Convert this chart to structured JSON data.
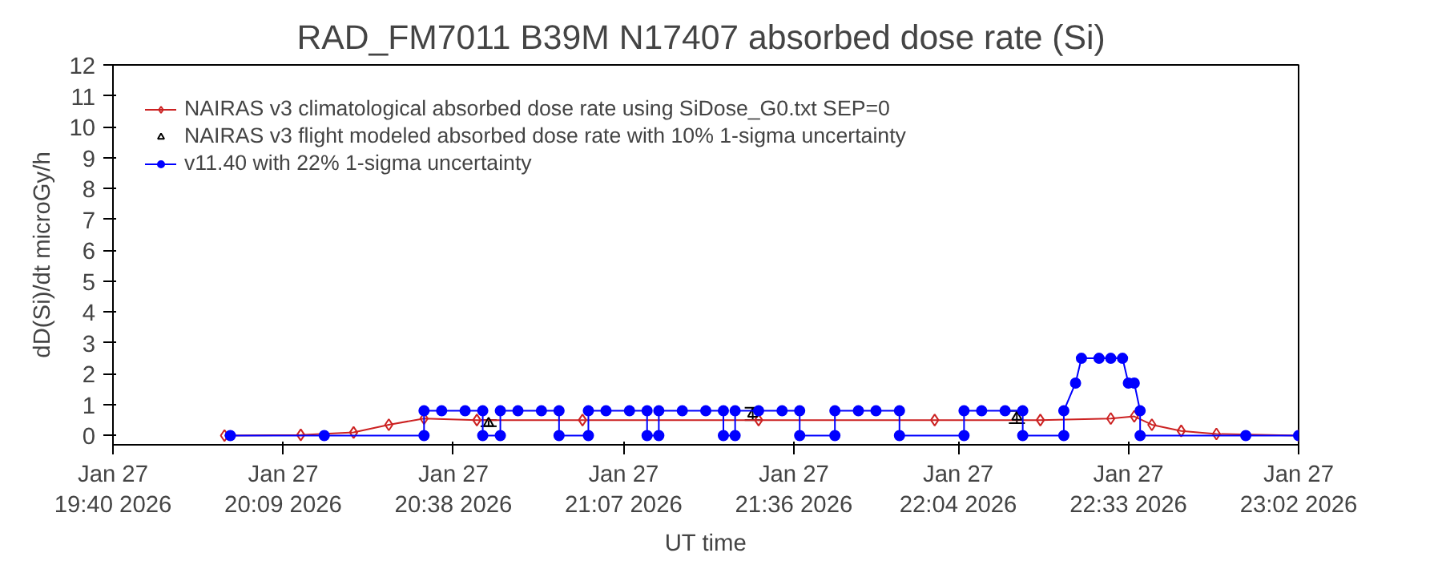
{
  "chart_data": {
    "type": "line",
    "title": "RAD_FM7011  B39M N17407 absorbed dose rate (Si)",
    "xlabel": "UT time",
    "ylabel": "dD(Si)/dt microGy/h",
    "xlim": [
      "2026-01-27T19:40",
      "2026-01-27T23:02"
    ],
    "ylim": [
      -0.3,
      12
    ],
    "yticks": [
      0,
      1,
      2,
      3,
      4,
      5,
      6,
      7,
      8,
      9,
      10,
      11,
      12
    ],
    "xticks": [
      {
        "value": "2026-01-27T19:40",
        "label": "Jan 27\n19:40 2026"
      },
      {
        "value": "2026-01-27T20:09",
        "label": "Jan 27\n20:09 2026"
      },
      {
        "value": "2026-01-27T20:38",
        "label": "Jan 27\n20:38 2026"
      },
      {
        "value": "2026-01-27T21:07",
        "label": "Jan 27\n21:07 2026"
      },
      {
        "value": "2026-01-27T21:36",
        "label": "Jan 27\n21:36 2026"
      },
      {
        "value": "2026-01-27T22:04",
        "label": "Jan 27\n22:04 2026"
      },
      {
        "value": "2026-01-27T22:33",
        "label": "Jan 27\n22:33 2026"
      },
      {
        "value": "2026-01-27T23:02",
        "label": "Jan 27\n23:02 2026"
      }
    ],
    "grid": false,
    "legend": "top left",
    "series": [
      {
        "name": "NAIRAS v3 climatological absorbed dose rate using SiDose_G0.txt SEP=0",
        "color": "#cc2222",
        "marker": "diamond",
        "x": [
          "2026-01-27T19:59",
          "2026-01-27T20:12",
          "2026-01-27T20:21",
          "2026-01-27T20:27",
          "2026-01-27T20:33",
          "2026-01-27T20:42",
          "2026-01-27T21:00",
          "2026-01-27T21:30",
          "2026-01-27T22:00",
          "2026-01-27T22:18",
          "2026-01-27T22:30",
          "2026-01-27T22:34",
          "2026-01-27T22:37",
          "2026-01-27T22:42",
          "2026-01-27T22:48",
          "2026-01-27T23:02"
        ],
        "values": [
          0,
          0.02,
          0.1,
          0.35,
          0.55,
          0.5,
          0.5,
          0.5,
          0.5,
          0.5,
          0.55,
          0.62,
          0.35,
          0.15,
          0.05,
          0
        ]
      },
      {
        "name": "NAIRAS v3 flight modeled absorbed dose rate with 10% 1-sigma uncertainty",
        "color": "#000000",
        "marker": "triangle",
        "type": "scatter",
        "x": [
          "2026-01-27T20:44",
          "2026-01-27T21:29",
          "2026-01-27T22:14"
        ],
        "values": [
          0.4,
          0.7,
          0.6
        ],
        "errors": [
          0.1,
          0.2,
          0.2
        ]
      },
      {
        "name": "v11.40 with 22% 1-sigma uncertainty",
        "color": "#0000ff",
        "marker": "circle",
        "x": [
          "2026-01-27T20:00",
          "2026-01-27T20:16",
          "2026-01-27T20:33",
          "2026-01-27T20:33",
          "2026-01-27T20:36",
          "2026-01-27T20:40",
          "2026-01-27T20:43",
          "2026-01-27T20:43",
          "2026-01-27T20:46",
          "2026-01-27T20:46",
          "2026-01-27T20:49",
          "2026-01-27T20:53",
          "2026-01-27T20:56",
          "2026-01-27T20:56",
          "2026-01-27T21:01",
          "2026-01-27T21:01",
          "2026-01-27T21:04",
          "2026-01-27T21:08",
          "2026-01-27T21:11",
          "2026-01-27T21:11",
          "2026-01-27T21:13",
          "2026-01-27T21:13",
          "2026-01-27T21:17",
          "2026-01-27T21:21",
          "2026-01-27T21:24",
          "2026-01-27T21:24",
          "2026-01-27T21:26",
          "2026-01-27T21:26",
          "2026-01-27T21:30",
          "2026-01-27T21:34",
          "2026-01-27T21:37",
          "2026-01-27T21:37",
          "2026-01-27T21:43",
          "2026-01-27T21:43",
          "2026-01-27T21:47",
          "2026-01-27T21:50",
          "2026-01-27T21:54",
          "2026-01-27T21:54",
          "2026-01-27T22:05",
          "2026-01-27T22:05",
          "2026-01-27T22:08",
          "2026-01-27T22:12",
          "2026-01-27T22:15",
          "2026-01-27T22:15",
          "2026-01-27T22:22",
          "2026-01-27T22:22",
          "2026-01-27T22:24",
          "2026-01-27T22:25",
          "2026-01-27T22:28",
          "2026-01-27T22:30",
          "2026-01-27T22:32",
          "2026-01-27T22:33",
          "2026-01-27T22:34",
          "2026-01-27T22:35",
          "2026-01-27T22:35",
          "2026-01-27T22:53",
          "2026-01-27T23:02"
        ],
        "values": [
          0,
          0,
          0,
          0.8,
          0.8,
          0.8,
          0.8,
          0,
          0,
          0.8,
          0.8,
          0.8,
          0.8,
          0,
          0,
          0.8,
          0.8,
          0.8,
          0.8,
          0,
          0,
          0.8,
          0.8,
          0.8,
          0.8,
          0,
          0,
          0.8,
          0.8,
          0.8,
          0.8,
          0,
          0,
          0.8,
          0.8,
          0.8,
          0.8,
          0,
          0,
          0.8,
          0.8,
          0.8,
          0.8,
          0,
          0,
          0.8,
          1.7,
          2.5,
          2.5,
          2.5,
          2.5,
          1.7,
          1.7,
          0.8,
          0,
          0,
          0
        ]
      }
    ]
  }
}
